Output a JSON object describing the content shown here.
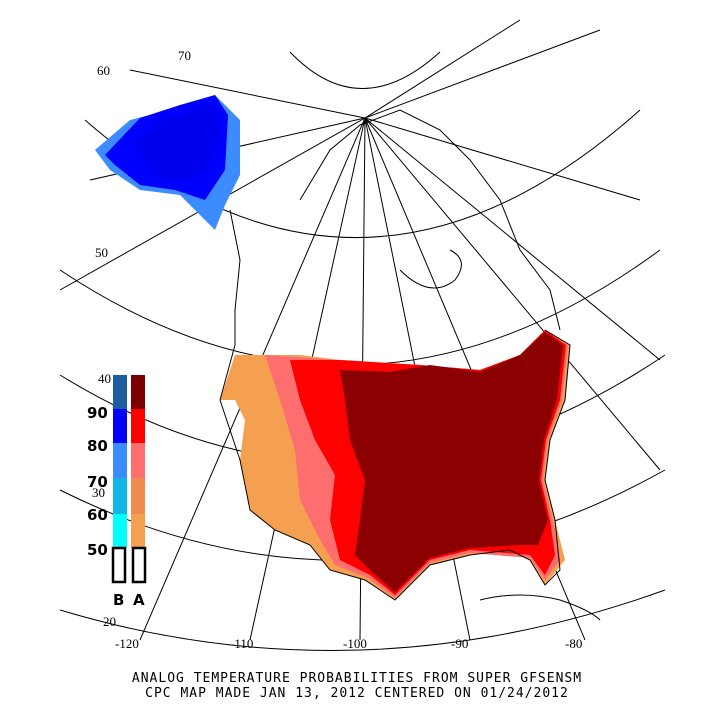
{
  "caption": {
    "line1": "ANALOG TEMPERATURE PROBABILITIES FROM SUPER GFSENSM",
    "line2": "CPC MAP MADE JAN 13, 2012 CENTERED ON 01/24/2012"
  },
  "graticule": {
    "lat_labels": [
      "60",
      "70",
      "50",
      "40",
      "30",
      "20"
    ],
    "lon_labels": [
      "-120",
      "-110",
      "-100",
      "-90",
      "-80"
    ]
  },
  "legend": {
    "levels": [
      "90",
      "80",
      "70",
      "60",
      "50"
    ],
    "below_label": "B",
    "above_label": "A",
    "below_colors": [
      "#1e5ca0",
      "#0000ff",
      "#3c8cff",
      "#14b4e6",
      "#00ffff"
    ],
    "above_colors": [
      "#7d0000",
      "#ff0000",
      "#ff6e6e",
      "#f08c50",
      "#f5a050"
    ]
  },
  "regions": {
    "above_normal_dominant": "#8b0000",
    "below_normal_alaska": "#0000ee"
  }
}
